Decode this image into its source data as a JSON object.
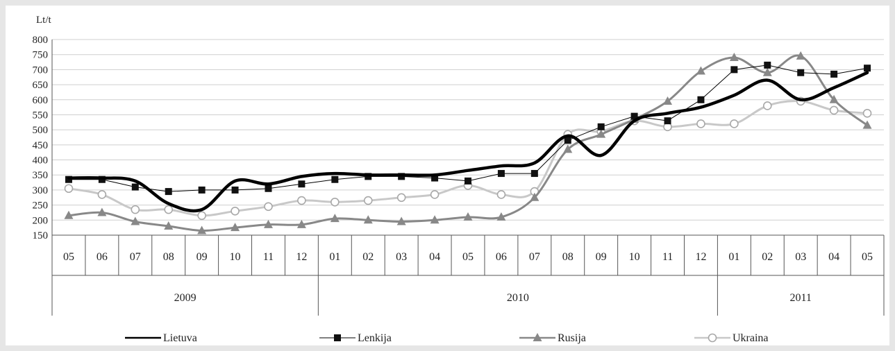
{
  "chart_data": {
    "type": "line",
    "ylabel": "Lt/t",
    "ylim": [
      150,
      800
    ],
    "yticks": [
      150,
      200,
      250,
      300,
      350,
      400,
      450,
      500,
      550,
      600,
      650,
      700,
      750,
      800
    ],
    "grid": true,
    "legend_position": "bottom",
    "categories": [
      "05",
      "06",
      "07",
      "08",
      "09",
      "10",
      "11",
      "12",
      "01",
      "02",
      "03",
      "04",
      "05",
      "06",
      "07",
      "08",
      "09",
      "10",
      "11",
      "12",
      "01",
      "02",
      "03",
      "04",
      "05"
    ],
    "year_groups": [
      {
        "label": "2009",
        "start": 0,
        "end": 7
      },
      {
        "label": "2010",
        "start": 8,
        "end": 19
      },
      {
        "label": "2011",
        "start": 20,
        "end": 24
      }
    ],
    "series": [
      {
        "name": "Lietuva",
        "color": "#000000",
        "marker": "none",
        "values": [
          340,
          340,
          330,
          255,
          235,
          330,
          320,
          345,
          355,
          350,
          350,
          350,
          365,
          380,
          390,
          480,
          415,
          530,
          555,
          575,
          615,
          665,
          600,
          640,
          690
        ]
      },
      {
        "name": "Lenkija",
        "color": "#000000",
        "marker": "square",
        "values": [
          335,
          335,
          310,
          295,
          300,
          300,
          305,
          320,
          335,
          345,
          345,
          340,
          330,
          355,
          355,
          465,
          510,
          545,
          530,
          600,
          700,
          715,
          690,
          685,
          705
        ]
      },
      {
        "name": "Rusija",
        "color": "#888888",
        "marker": "triangle",
        "values": [
          215,
          225,
          195,
          180,
          165,
          175,
          185,
          185,
          205,
          200,
          195,
          200,
          210,
          210,
          275,
          435,
          485,
          535,
          595,
          695,
          740,
          690,
          745,
          600,
          515
        ]
      },
      {
        "name": "Ukraina",
        "color": "#c0c0c0",
        "marker": "circle",
        "values": [
          305,
          285,
          235,
          235,
          215,
          230,
          245,
          265,
          260,
          265,
          275,
          285,
          315,
          285,
          295,
          485,
          495,
          530,
          510,
          520,
          520,
          580,
          595,
          565,
          555
        ]
      }
    ]
  }
}
